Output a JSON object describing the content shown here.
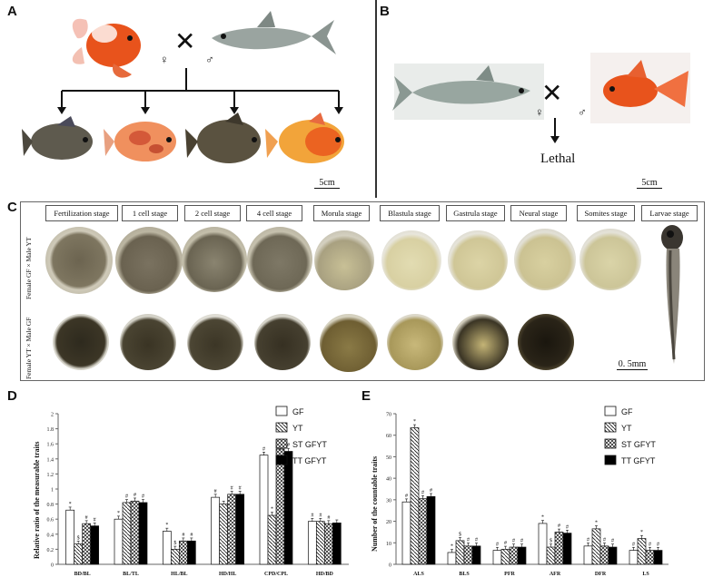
{
  "panels": {
    "A": {
      "letter": "A",
      "female_symbol": "♀",
      "male_symbol": "♂",
      "cross_symbol": "✕",
      "scale": "5cm"
    },
    "B": {
      "letter": "B",
      "female_symbol": "♀",
      "male_symbol": "♂",
      "cross_symbol": "✕",
      "result": "Lethal",
      "scale": "5cm"
    },
    "C": {
      "letter": "C",
      "stages": [
        "Fertilization stage",
        "1 cell stage",
        "2 cell stage",
        "4 cell stage",
        "Morula stage",
        "Blastula stage",
        "Gastrula stage",
        "Neural stage",
        "Somites stage",
        "Larvae stage"
      ],
      "row1_label": "Female GF × Male YT",
      "row2_label": "Female YT × Male GF",
      "scale": "0. 5mm"
    },
    "D": {
      "letter": "D"
    },
    "E": {
      "letter": "E"
    }
  },
  "chart_data": [
    {
      "type": "bar",
      "panel": "D",
      "ylabel": "Relative ratio of the measurable traits",
      "ylim": [
        0,
        2
      ],
      "yticks": [
        "0",
        "0.2",
        "0.4",
        "0.6",
        "0.8",
        "1",
        "1.2",
        "1.4",
        "1.6",
        "1.8",
        "2"
      ],
      "categories": [
        "BD/BL",
        "BL/TL",
        "HL/BL",
        "HD/HL",
        "CPD/CPL",
        "HD/BD"
      ],
      "series": [
        {
          "name": "GF",
          "values": [
            0.72,
            0.6,
            0.44,
            0.89,
            1.45,
            0.57
          ],
          "marks": [
            "*",
            "*",
            "*",
            "#",
            "#",
            "#"
          ]
        },
        {
          "name": "YT",
          "values": [
            0.27,
            0.82,
            0.2,
            0.8,
            0.65,
            0.57
          ],
          "marks": [
            "$",
            "#",
            "$",
            "",
            "*",
            "#"
          ]
        },
        {
          "name": "ST GFYT",
          "values": [
            0.54,
            0.84,
            0.31,
            0.93,
            1.53,
            0.54
          ],
          "marks": [
            "#",
            "#",
            "#",
            "#",
            "#",
            "#"
          ]
        },
        {
          "name": "TT GFYT",
          "values": [
            0.51,
            0.82,
            0.31,
            0.93,
            1.5,
            0.55
          ],
          "marks": [
            "#",
            "#",
            "#",
            "#",
            "#",
            ""
          ]
        }
      ]
    },
    {
      "type": "bar",
      "panel": "E",
      "ylabel": "Number of the countable traits",
      "ylim": [
        0,
        70
      ],
      "yticks": [
        "0",
        "10",
        "20",
        "30",
        "40",
        "50",
        "60",
        "70"
      ],
      "categories": [
        "ALS",
        "BLS",
        "PFR",
        "AFR",
        "DFR",
        "LS"
      ],
      "series": [
        {
          "name": "GF",
          "values": [
            29,
            5.5,
            6.5,
            19,
            8.5,
            6.5
          ],
          "marks": [
            "#",
            "*",
            "#",
            "*",
            "#",
            "#"
          ]
        },
        {
          "name": "YT",
          "values": [
            63.5,
            11,
            7,
            8,
            16.5,
            12
          ],
          "marks": [
            "*",
            "$",
            "#",
            "$",
            "*",
            "*"
          ]
        },
        {
          "name": "ST GFYT",
          "values": [
            30.5,
            8.5,
            8,
            15,
            8.5,
            6.5
          ],
          "marks": [
            "#",
            "#",
            "#",
            "#",
            "#",
            "#"
          ]
        },
        {
          "name": "TT GFYT",
          "values": [
            31.5,
            8.5,
            8,
            14.5,
            8,
            6.5
          ],
          "marks": [
            "#",
            "#",
            "#",
            "#",
            "#",
            "#"
          ]
        }
      ]
    }
  ],
  "colors": {
    "goldfish_orange": "#e8531c",
    "goldfish_gold": "#f2a43a",
    "silver_fish": "#9aa4a0",
    "hybrid_gray": "#5e5a4e",
    "embryo_yolk": "#8c7a52"
  }
}
